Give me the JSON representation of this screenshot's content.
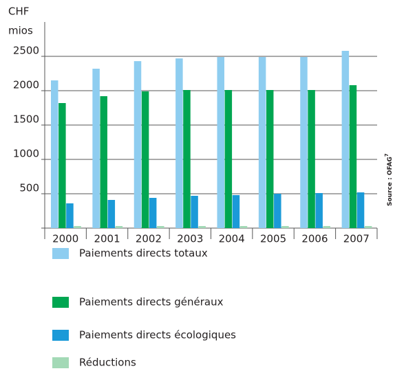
{
  "chart_data": {
    "type": "bar",
    "y_axis_label_lines": [
      "CHF",
      "mios"
    ],
    "categories": [
      "2000",
      "2001",
      "2002",
      "2003",
      "2004",
      "2005",
      "2006",
      "2007"
    ],
    "series": [
      {
        "name": "Paiements directs totaux",
        "color": "#8ecdf0",
        "values": [
          2150,
          2320,
          2430,
          2470,
          2490,
          2490,
          2490,
          2580
        ]
      },
      {
        "name": "Paiements directs généraux",
        "color": "#00a651",
        "values": [
          1820,
          1920,
          1990,
          2010,
          2010,
          2010,
          2010,
          2080
        ]
      },
      {
        "name": "Paiements directs écologiques",
        "color": "#1b9ad8",
        "values": [
          360,
          410,
          440,
          470,
          480,
          500,
          510,
          520
        ]
      },
      {
        "name": "Réductions",
        "color": "#a3d9b6",
        "values": [
          30,
          30,
          30,
          30,
          30,
          30,
          30,
          30
        ]
      }
    ],
    "ylim": [
      0,
      3000
    ],
    "yticks": [
      500,
      1000,
      1500,
      2000,
      2500
    ],
    "grid": true,
    "source": "Source : OFAG",
    "source_note": "7"
  }
}
